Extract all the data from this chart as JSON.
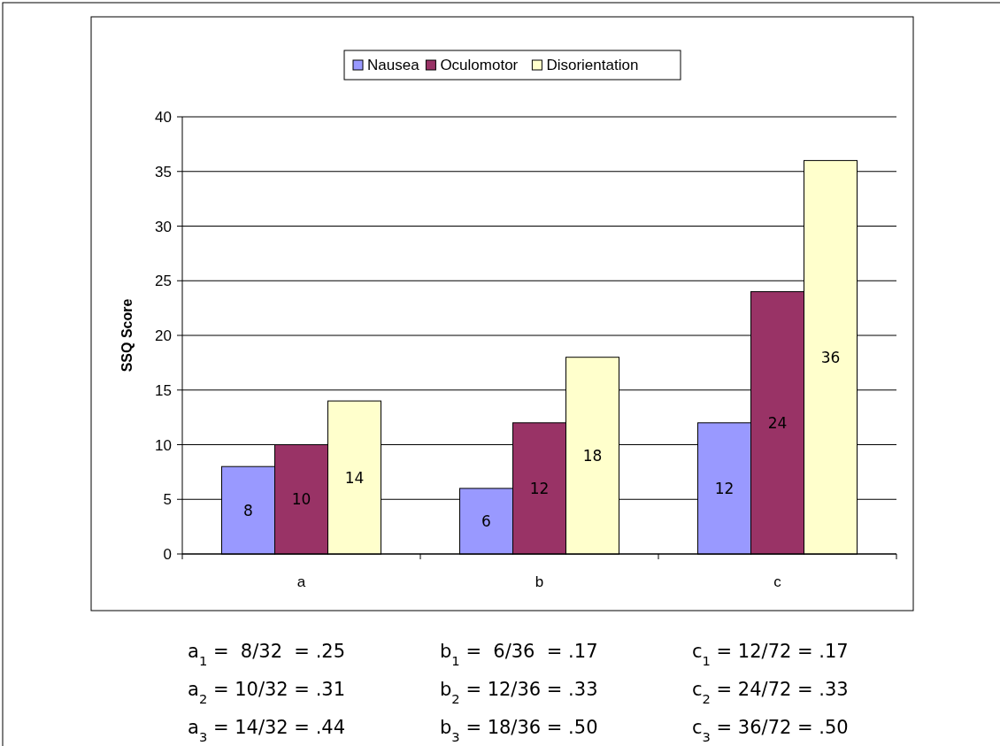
{
  "chart_data": {
    "type": "bar",
    "ylabel": "SSQ Score",
    "categories": [
      "a",
      "b",
      "c"
    ],
    "series": [
      {
        "name": "Nausea",
        "color": "#9999ff",
        "values": [
          8,
          6,
          12
        ]
      },
      {
        "name": "Oculomotor",
        "color": "#993366",
        "values": [
          10,
          12,
          24
        ]
      },
      {
        "name": "Disorientation",
        "color": "#ffffcc",
        "values": [
          14,
          18,
          36
        ]
      }
    ],
    "ylim": [
      0,
      40
    ],
    "yticks": [
      0,
      5,
      10,
      15,
      20,
      25,
      30,
      35,
      40
    ],
    "grid": "y",
    "legend": "top",
    "data_labels": true,
    "annotations": [
      "a$_{1}$ =  8/32  = .25",
      "b$_{1}$ =  6/36  = .17",
      "c$_{1}$ = 12/72 = .17",
      "a$_{2}$ = 10/32 = .31",
      "b$_{2}$ = 12/36 = .33",
      "c$_{2}$ = 24/72 = .33",
      "a$_{3}$ = 14/32 = .44",
      "b$_{3}$ = 18/36 = .50",
      "c$_{3}$ = 36/72 = .50"
    ]
  }
}
